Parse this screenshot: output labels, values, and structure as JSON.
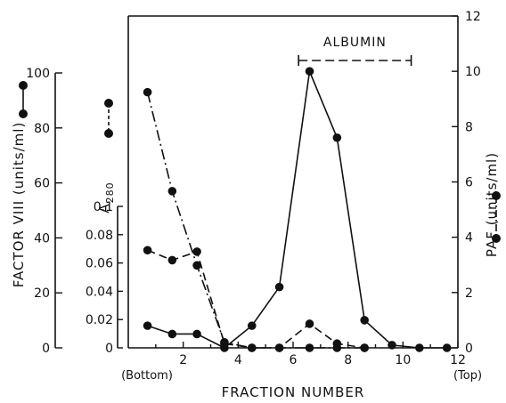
{
  "chart_data": {
    "type": "line",
    "xlabel": "FRACTION NUMBER",
    "x_end_labels": [
      "(Bottom)",
      "(Top)"
    ],
    "xlim": [
      0,
      12
    ],
    "x_ticks": [
      "2",
      "4",
      "6",
      "8",
      "10",
      "12"
    ],
    "axes": {
      "factor_viii": {
        "label": "FACTOR VIII (units/ml)",
        "range": [
          0,
          100
        ],
        "ticks": [
          "0",
          "20",
          "40",
          "60",
          "80",
          "100"
        ]
      },
      "a280": {
        "label_main": "A",
        "label_sub": "280",
        "range": [
          0,
          0.12
        ],
        "ticks": [
          "0",
          "0.02",
          "0.04",
          "0.06",
          "0.08",
          "0.1"
        ]
      },
      "paf": {
        "label": "PAF (units/ml)",
        "range": [
          0,
          12
        ],
        "ticks": [
          "0",
          "2",
          "4",
          "6",
          "8",
          "10",
          "12"
        ]
      }
    },
    "annotation": {
      "label": "ALBUMIN",
      "x_range": [
        6.2,
        10.3
      ]
    },
    "series": [
      {
        "key": "paf",
        "axis": "paf",
        "style": "solid",
        "color": "#111111",
        "x": [
          0.7,
          1.6,
          2.5,
          3.5,
          4.5,
          5.5,
          6.6,
          7.6,
          8.6,
          9.6,
          10.6,
          11.6
        ],
        "y": [
          0.8,
          0.5,
          0.5,
          0.0,
          0.8,
          2.2,
          10.0,
          7.6,
          1.0,
          0.1,
          0.0,
          0.0
        ]
      },
      {
        "key": "factor_viii",
        "axis": "factor_viii",
        "style": "dash-dot",
        "color": "#111111",
        "x": [
          0.7,
          1.6,
          2.5,
          3.5,
          4.5,
          5.5,
          6.6,
          7.6,
          8.6
        ],
        "y": [
          93,
          57,
          30,
          2,
          0,
          0,
          0,
          0,
          0
        ]
      },
      {
        "key": "a280",
        "axis": "a280",
        "style": "dashed",
        "color": "#111111",
        "x": [
          0.7,
          1.6,
          2.5,
          3.5,
          4.5,
          5.5,
          6.6,
          7.6,
          8.6
        ],
        "y": [
          0.069,
          0.062,
          0.068,
          0.003,
          0.0,
          0.0,
          0.017,
          0.003,
          0.0
        ]
      }
    ]
  }
}
